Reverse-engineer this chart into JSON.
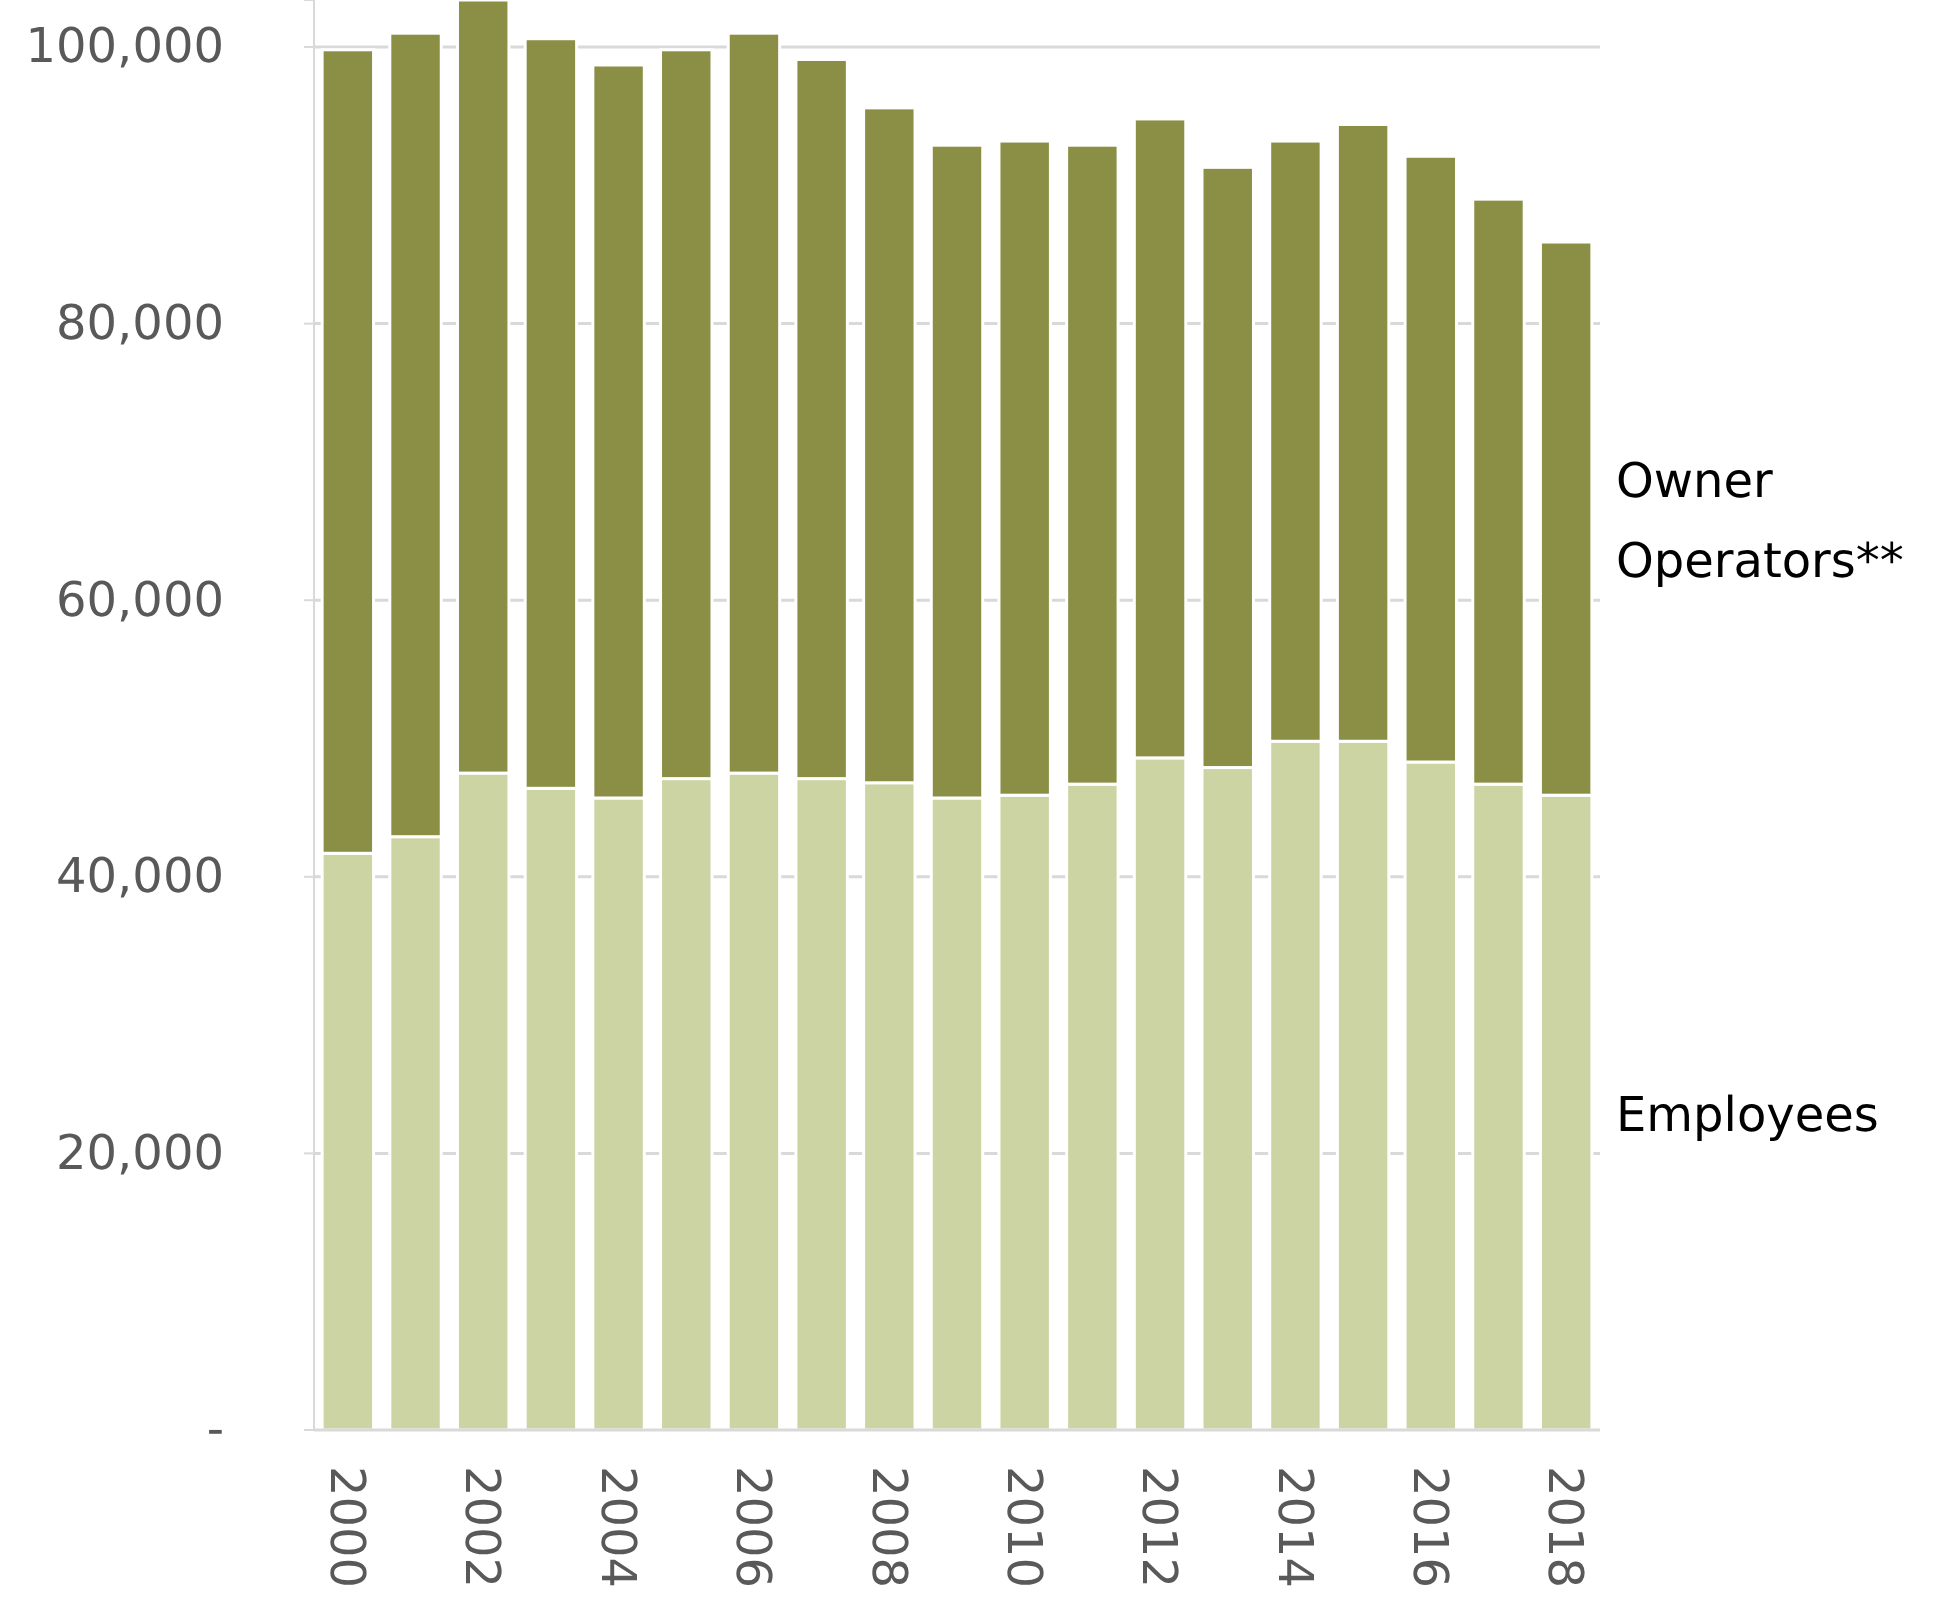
{
  "chart_data": {
    "type": "bar",
    "stacked": true,
    "categories": [
      "2000",
      null,
      "2002",
      null,
      "2004",
      null,
      "2006",
      null,
      "2008",
      null,
      "2010",
      null,
      "2012",
      null,
      "2014",
      null,
      "2016",
      null,
      "2018"
    ],
    "series": [
      {
        "name": "Employees",
        "color": "#cdd4a3",
        "values": [
          41700,
          42900,
          47500,
          46400,
          45700,
          47100,
          47500,
          47100,
          46800,
          45700,
          45900,
          46700,
          48600,
          47900,
          49800,
          49800,
          48300,
          46700,
          45900
        ]
      },
      {
        "name": "Owner Operators**",
        "color": "#8a8f45",
        "values": [
          58100,
          58100,
          55900,
          54200,
          53000,
          52700,
          53500,
          52000,
          48800,
          47200,
          47300,
          46200,
          46200,
          43400,
          43400,
          44600,
          43800,
          42300,
          40000
        ]
      }
    ],
    "ylim": [
      0,
      103400
    ],
    "yticks": [
      {
        "value": 0,
        "label": "-"
      },
      {
        "value": 20000,
        "label": "20,000"
      },
      {
        "value": 40000,
        "label": "40,000"
      },
      {
        "value": 60000,
        "label": "60,000"
      },
      {
        "value": 80000,
        "label": "80,000"
      },
      {
        "value": 100000,
        "label": "100,000"
      }
    ],
    "grid": "y"
  }
}
